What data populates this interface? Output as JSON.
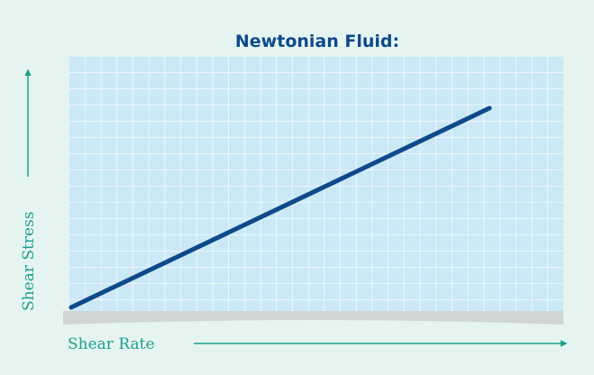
{
  "title": "Newtonian Fluid:",
  "x_axis_label": "Shear Rate",
  "y_axis_label": "Shear Stress"
}
